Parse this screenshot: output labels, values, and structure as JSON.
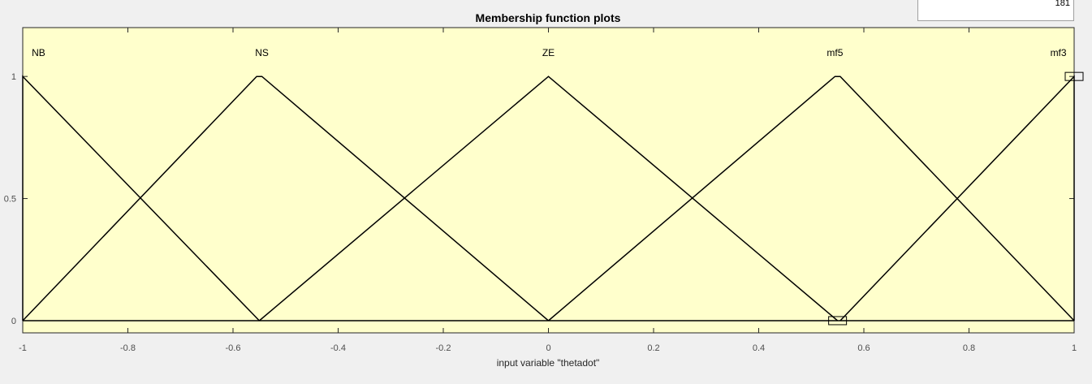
{
  "points_field": {
    "value": "181"
  },
  "colors": {
    "plot_background": "#ffffcc",
    "window_background": "#f0f0f0",
    "curve": "#000000",
    "axis": "#262626",
    "tick_label": "#4d4d4d"
  },
  "chart_data": {
    "type": "line",
    "title": "Membership function plots",
    "xlabel": "input variable \"thetadot\"",
    "ylabel": "",
    "xlim": [
      -1,
      1
    ],
    "ylim": [
      -0.05,
      1.2
    ],
    "x_ticks": [
      -1,
      -0.8,
      -0.6,
      -0.4,
      -0.2,
      0,
      0.2,
      0.4,
      0.6,
      0.8,
      1
    ],
    "x_tick_labels": [
      "-1",
      "-0.8",
      "-0.6",
      "-0.4",
      "-0.2",
      "0",
      "0.2",
      "0.4",
      "0.6",
      "0.8",
      "1"
    ],
    "y_ticks": [
      0,
      0.5,
      1
    ],
    "y_tick_labels": [
      "0",
      "0.5",
      "1"
    ],
    "grid": false,
    "series": [
      {
        "name": "NB",
        "label_x": -0.97,
        "x": [
          -1,
          -1,
          -0.55
        ],
        "y": [
          0,
          1,
          0
        ]
      },
      {
        "name": "NS",
        "label_x": -0.545,
        "x": [
          -1,
          -0.555,
          -0.545,
          0
        ],
        "y": [
          0,
          1,
          1,
          0
        ]
      },
      {
        "name": "ZE",
        "label_x": 0,
        "x": [
          -0.55,
          0,
          0.55
        ],
        "y": [
          0,
          1,
          0
        ]
      },
      {
        "name": "mf5",
        "label_x": 0.545,
        "x": [
          0,
          0.545,
          0.555,
          1
        ],
        "y": [
          0,
          1,
          1,
          0
        ]
      },
      {
        "name": "mf3",
        "label_x": 0.97,
        "x": [
          0.555,
          1,
          1
        ],
        "y": [
          0,
          1,
          0
        ]
      }
    ],
    "selection_handles": [
      {
        "x": 0.55,
        "y": 0
      },
      {
        "x": 1,
        "y": 1
      }
    ]
  }
}
